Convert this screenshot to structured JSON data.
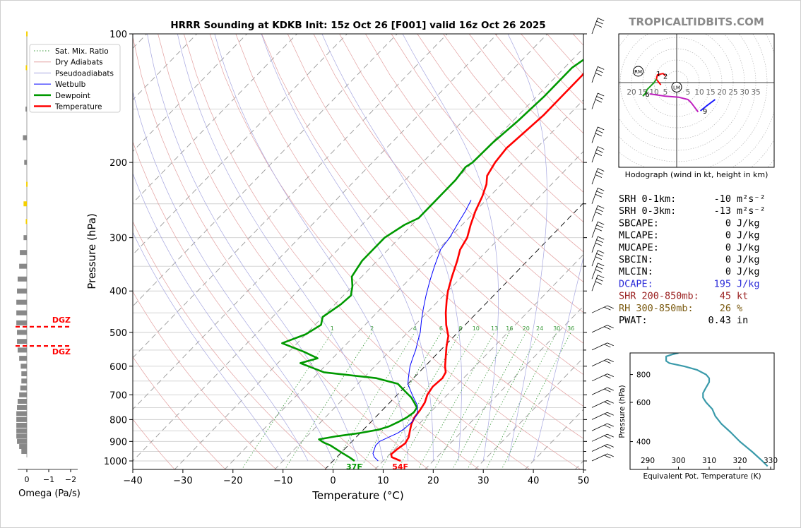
{
  "title": "HRRR Sounding at KDKB Init: 15z Oct 26 [F001] valid 16z Oct 26 2025",
  "watermark": "TROPICALTIDBITS.COM",
  "skewt": {
    "xlabel": "Temperature (°C)",
    "ylabel": "Pressure (hPa)",
    "xlim": [
      -40,
      50
    ],
    "pressure_ticks": [
      100,
      200,
      300,
      400,
      500,
      600,
      700,
      800,
      900,
      1000
    ],
    "temp_ticks": [
      -40,
      -30,
      -20,
      -10,
      0,
      10,
      20,
      30,
      40,
      50
    ],
    "temp_tick_labels": [
      "−40",
      "−30",
      "−20",
      "−10",
      "0",
      "10",
      "20",
      "30",
      "40",
      "50"
    ],
    "mixing_ratio_labels": [
      "1",
      "2",
      "4",
      "6",
      "8",
      "10",
      "13",
      "16",
      "20",
      "24",
      "30",
      "36"
    ],
    "legend": [
      "Sat. Mix. Ratio",
      "Dry Adiabats",
      "Pseudoadiabats",
      "Wetbulb",
      "Dewpoint",
      "Temperature"
    ],
    "surface_temp_label": "54F",
    "surface_dewpoint_label": "37F"
  },
  "omega": {
    "xlabel": "Omega (Pa/s)",
    "tick_labels": [
      "0",
      "−1",
      "−2"
    ],
    "dgz_label_top": "DGZ",
    "dgz_label_bottom": "DGZ",
    "dgz_pressures": [
      485,
      538
    ],
    "bars": [
      {
        "p": 100,
        "w": 0.03,
        "c": "#f5d000"
      },
      {
        "p": 120,
        "w": 0.05,
        "c": "#f5d000"
      },
      {
        "p": 150,
        "w": 0.06,
        "c": "#888888"
      },
      {
        "p": 175,
        "w": 0.18,
        "c": "#888888"
      },
      {
        "p": 200,
        "w": 0.12,
        "c": "#888888"
      },
      {
        "p": 225,
        "w": 0.03,
        "c": "#f5d000"
      },
      {
        "p": 250,
        "w": 0.15,
        "c": "#f5d000"
      },
      {
        "p": 275,
        "w": 0.05,
        "c": "#f5d000"
      },
      {
        "p": 300,
        "w": 0.15,
        "c": "#888888"
      },
      {
        "p": 325,
        "w": 0.32,
        "c": "#888888"
      },
      {
        "p": 350,
        "w": 0.35,
        "c": "#888888"
      },
      {
        "p": 375,
        "w": 0.42,
        "c": "#888888"
      },
      {
        "p": 400,
        "w": 0.45,
        "c": "#888888"
      },
      {
        "p": 425,
        "w": 0.48,
        "c": "#888888"
      },
      {
        "p": 450,
        "w": 0.48,
        "c": "#888888"
      },
      {
        "p": 475,
        "w": 0.48,
        "c": "#888888"
      },
      {
        "p": 500,
        "w": 0.45,
        "c": "#888888"
      },
      {
        "p": 525,
        "w": 0.45,
        "c": "#888888"
      },
      {
        "p": 550,
        "w": 0.42,
        "c": "#888888"
      },
      {
        "p": 575,
        "w": 0.35,
        "c": "#888888"
      },
      {
        "p": 600,
        "w": 0.28,
        "c": "#888888"
      },
      {
        "p": 625,
        "w": 0.25,
        "c": "#888888"
      },
      {
        "p": 650,
        "w": 0.25,
        "c": "#888888"
      },
      {
        "p": 675,
        "w": 0.3,
        "c": "#888888"
      },
      {
        "p": 700,
        "w": 0.35,
        "c": "#888888"
      },
      {
        "p": 725,
        "w": 0.42,
        "c": "#888888"
      },
      {
        "p": 750,
        "w": 0.45,
        "c": "#888888"
      },
      {
        "p": 775,
        "w": 0.48,
        "c": "#888888"
      },
      {
        "p": 800,
        "w": 0.48,
        "c": "#888888"
      },
      {
        "p": 825,
        "w": 0.48,
        "c": "#888888"
      },
      {
        "p": 850,
        "w": 0.48,
        "c": "#888888"
      },
      {
        "p": 875,
        "w": 0.48,
        "c": "#888888"
      },
      {
        "p": 900,
        "w": 0.45,
        "c": "#888888"
      },
      {
        "p": 925,
        "w": 0.35,
        "c": "#888888"
      },
      {
        "p": 950,
        "w": 0.25,
        "c": "#888888"
      }
    ]
  },
  "hodograph": {
    "caption": "Hodograph (wind in kt, height in km)",
    "ring_labels_left": [
      "20",
      "15",
      "10",
      "5"
    ],
    "ring_labels_right": [
      "5",
      "10",
      "15",
      "20",
      "25",
      "30",
      "35"
    ],
    "rm_label": "RM",
    "lm_label": "LM",
    "height_labels": [
      {
        "t": "1",
        "u": -8,
        "v": 4
      },
      {
        "t": "2",
        "u": -5,
        "v": 3
      },
      {
        "t": "6",
        "u": -13,
        "v": -5
      },
      {
        "t": "9",
        "u": 12.5,
        "v": -12.5
      }
    ],
    "segments": [
      {
        "color": "#ff0000",
        "pts": [
          [
            -7,
            -1
          ],
          [
            -9,
            1.5
          ],
          [
            -8.5,
            3.5
          ],
          [
            -6,
            4
          ],
          [
            -5,
            3
          ]
        ]
      },
      {
        "color": "#1aa01a",
        "pts": [
          [
            -9,
            1.5
          ],
          [
            -10,
            0
          ],
          [
            -11.5,
            -1.5
          ],
          [
            -13,
            -3
          ],
          [
            -14,
            -5
          ],
          [
            -15,
            -6
          ]
        ]
      },
      {
        "color": "#c020c0",
        "pts": [
          [
            -12,
            -5
          ],
          [
            -5,
            -6
          ],
          [
            1,
            -6.5
          ],
          [
            5,
            -7.5
          ],
          [
            6.5,
            -9
          ],
          [
            8,
            -11
          ],
          [
            9.5,
            -13
          ]
        ]
      },
      {
        "color": "#1a1aff",
        "pts": [
          [
            10.5,
            -12.5
          ],
          [
            13,
            -10.5
          ],
          [
            17,
            -7.5
          ]
        ]
      }
    ],
    "rm_vector": {
      "u": -17,
      "v": 5
    },
    "lm_vector": {
      "u": 0,
      "v": -2
    }
  },
  "indices": [
    {
      "label": "SRH 0-1km:",
      "value": "-10",
      "unit": "m²s⁻²",
      "color": "#000000"
    },
    {
      "label": "SRH 0-3km:",
      "value": "-13",
      "unit": "m²s⁻²",
      "color": "#000000"
    },
    {
      "label": "SBCAPE:",
      "value": "0",
      "unit": "J/kg",
      "color": "#000000"
    },
    {
      "label": "MLCAPE:",
      "value": "0",
      "unit": "J/kg",
      "color": "#000000"
    },
    {
      "label": "MUCAPE:",
      "value": "0",
      "unit": "J/kg",
      "color": "#000000"
    },
    {
      "label": "SBCIN:",
      "value": "0",
      "unit": "J/kg",
      "color": "#000000"
    },
    {
      "label": "MLCIN:",
      "value": "0",
      "unit": "J/kg",
      "color": "#000000"
    },
    {
      "label": "DCAPE:",
      "value": "195",
      "unit": "J/kg",
      "color": "#2a2ad8"
    },
    {
      "label": "SHR 200-850mb:",
      "value": "45",
      "unit": "kt",
      "color": "#9a2020"
    },
    {
      "label": "RH 300-850mb:",
      "value": "26",
      "unit": "%",
      "color": "#7a5a10"
    },
    {
      "label": "PWAT:",
      "value": "0.43",
      "unit": "in",
      "color": "#000000"
    }
  ],
  "theta_e": {
    "xlabel": "Equivalent Pot. Temperature (K)",
    "ylabel": "Pressure (hPa)",
    "x_ticks": [
      "290",
      "300",
      "310",
      "320",
      "330"
    ],
    "y_ticks": [
      "400",
      "600",
      "800"
    ],
    "color": "#3a9aaa"
  },
  "chart_data": {
    "type": "line",
    "title": "HRRR Sounding at KDKB Init: 15z Oct 26 [F001] valid 16z Oct 26 2025",
    "xlabel": "Temperature (°C)",
    "ylabel": "Pressure (hPa)",
    "xlim": [
      -40,
      50
    ],
    "ylim": [
      1050,
      100
    ],
    "y_scale": "log",
    "series": [
      {
        "name": "Temperature",
        "color": "#ff0000",
        "points": [
          [
            1000,
            13.5
          ],
          [
            980,
            11
          ],
          [
            965,
            10.3
          ],
          [
            940,
            10.5
          ],
          [
            910,
            11
          ],
          [
            880,
            10.5
          ],
          [
            850,
            9.5
          ],
          [
            820,
            8.5
          ],
          [
            790,
            7.8
          ],
          [
            760,
            7.5
          ],
          [
            730,
            7
          ],
          [
            700,
            6
          ],
          [
            670,
            5.5
          ],
          [
            640,
            5.8
          ],
          [
            620,
            5.3
          ],
          [
            600,
            4
          ],
          [
            570,
            2.3
          ],
          [
            540,
            0.5
          ],
          [
            510,
            -1.2
          ],
          [
            480,
            -3.8
          ],
          [
            450,
            -6.2
          ],
          [
            420,
            -8.5
          ],
          [
            400,
            -10
          ],
          [
            370,
            -12
          ],
          [
            340,
            -14
          ],
          [
            320,
            -15.6
          ],
          [
            300,
            -16.5
          ],
          [
            280,
            -18.3
          ],
          [
            260,
            -20
          ],
          [
            240,
            -21.5
          ],
          [
            225,
            -23
          ],
          [
            215,
            -24.5
          ],
          [
            200,
            -25.5
          ],
          [
            185,
            -26
          ],
          [
            170,
            -25.5
          ],
          [
            155,
            -25
          ],
          [
            140,
            -25
          ],
          [
            125,
            -25
          ],
          [
            110,
            -25.8
          ],
          [
            100,
            -26.5
          ]
        ]
      },
      {
        "name": "Dewpoint",
        "color": "#009900",
        "points": [
          [
            1000,
            4.3
          ],
          [
            980,
            2.5
          ],
          [
            960,
            0.5
          ],
          [
            940,
            -1.5
          ],
          [
            920,
            -3.5
          ],
          [
            905,
            -5.5
          ],
          [
            890,
            -7
          ],
          [
            875,
            -4
          ],
          [
            860,
            0
          ],
          [
            845,
            3
          ],
          [
            830,
            4.5
          ],
          [
            810,
            5.5
          ],
          [
            790,
            6.3
          ],
          [
            770,
            6.7
          ],
          [
            750,
            6.4
          ],
          [
            730,
            4.9
          ],
          [
            710,
            3.3
          ],
          [
            690,
            1.2
          ],
          [
            660,
            -2
          ],
          [
            640,
            -7.4
          ],
          [
            620,
            -19
          ],
          [
            590,
            -25.5
          ],
          [
            575,
            -23
          ],
          [
            555,
            -27
          ],
          [
            530,
            -33
          ],
          [
            505,
            -30
          ],
          [
            480,
            -28.8
          ],
          [
            460,
            -30
          ],
          [
            430,
            -28.8
          ],
          [
            410,
            -28.5
          ],
          [
            390,
            -30
          ],
          [
            370,
            -32
          ],
          [
            340,
            -33
          ],
          [
            320,
            -33
          ],
          [
            300,
            -33
          ],
          [
            280,
            -31.5
          ],
          [
            270,
            -30
          ],
          [
            250,
            -30
          ],
          [
            235,
            -30
          ],
          [
            220,
            -30
          ],
          [
            205,
            -30.5
          ],
          [
            200,
            -30
          ],
          [
            180,
            -29.8
          ],
          [
            160,
            -29
          ],
          [
            140,
            -28.5
          ],
          [
            120,
            -28.5
          ],
          [
            110,
            -27
          ],
          [
            100,
            -26
          ]
        ]
      },
      {
        "name": "Wetbulb",
        "color": "#0000ff",
        "points": [
          [
            1000,
            9
          ],
          [
            980,
            7.5
          ],
          [
            960,
            6.5
          ],
          [
            940,
            6
          ],
          [
            920,
            5.5
          ],
          [
            900,
            5.5
          ],
          [
            880,
            6.5
          ],
          [
            860,
            7.5
          ],
          [
            840,
            8
          ],
          [
            810,
            8.2
          ],
          [
            780,
            7.8
          ],
          [
            760,
            7
          ],
          [
            740,
            6
          ],
          [
            720,
            4.5
          ],
          [
            700,
            3
          ],
          [
            680,
            1.5
          ],
          [
            660,
            0
          ],
          [
            640,
            -1
          ],
          [
            620,
            -2
          ],
          [
            600,
            -3
          ],
          [
            575,
            -4
          ],
          [
            550,
            -5
          ],
          [
            520,
            -6.5
          ],
          [
            500,
            -7.5
          ],
          [
            470,
            -9.5
          ],
          [
            440,
            -11.5
          ],
          [
            410,
            -13.5
          ],
          [
            380,
            -15.5
          ],
          [
            350,
            -17.5
          ],
          [
            320,
            -19.5
          ],
          [
            300,
            -20
          ],
          [
            280,
            -21
          ],
          [
            260,
            -22
          ],
          [
            245,
            -23
          ]
        ]
      }
    ]
  }
}
